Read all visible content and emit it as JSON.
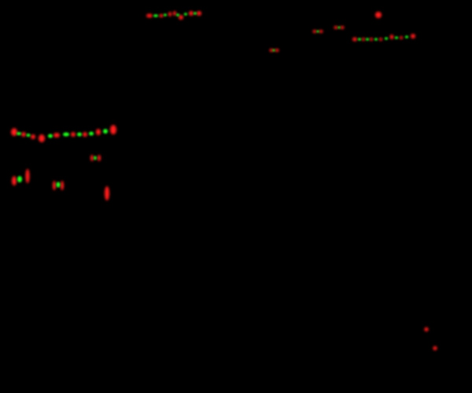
{
  "image": {
    "background_color": "#000000",
    "glow_colors": {
      "red": "#ff1a1a",
      "green": "#22ff22"
    },
    "description_visible_text": ""
  }
}
